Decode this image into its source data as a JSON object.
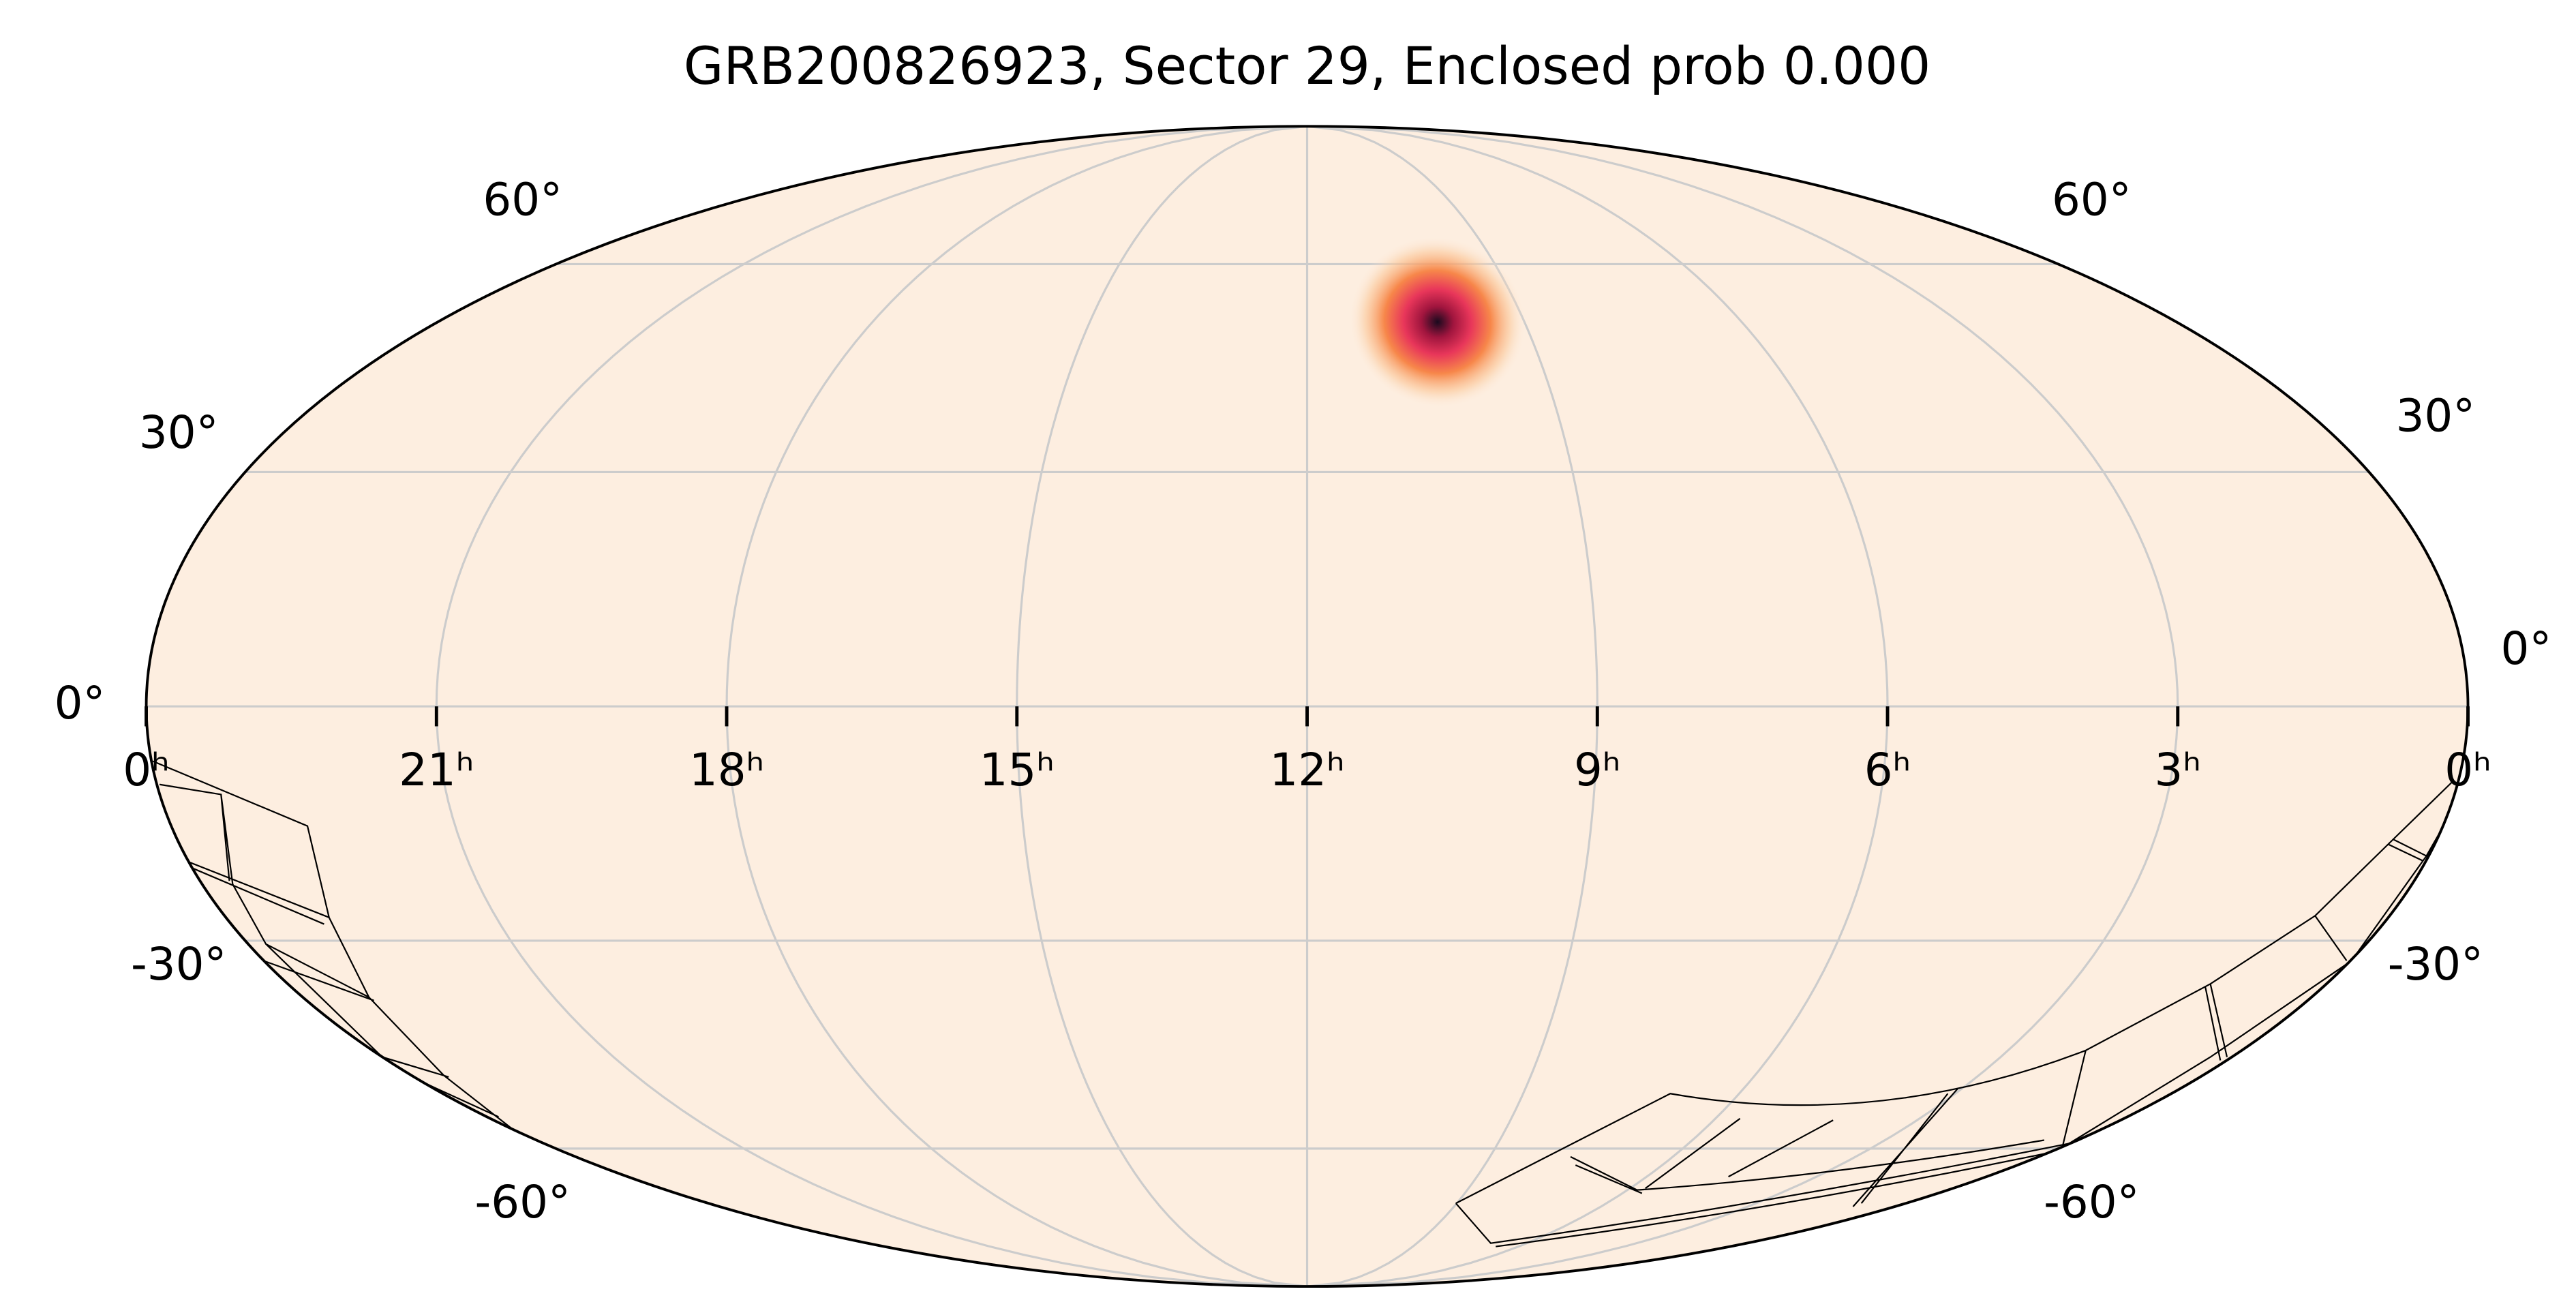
{
  "chart_data": {
    "type": "mollweide",
    "title": "GRB200826923, Sector 29, Enclosed prob 0.000",
    "xticks": [
      {
        "value": 24,
        "label": "0ʰ"
      },
      {
        "value": 21,
        "label": "21ʰ"
      },
      {
        "value": 18,
        "label": "18ʰ"
      },
      {
        "value": 15,
        "label": "15ʰ"
      },
      {
        "value": 12,
        "label": "12ʰ"
      },
      {
        "value": 9,
        "label": "9ʰ"
      },
      {
        "value": 6,
        "label": "6ʰ"
      },
      {
        "value": 3,
        "label": "3ʰ"
      },
      {
        "value": 0,
        "label": "0ʰ"
      }
    ],
    "yticks": [
      {
        "value": -60,
        "label": "-60°"
      },
      {
        "value": -30,
        "label": "-30°"
      },
      {
        "value": 0,
        "label": "0°"
      },
      {
        "value": 30,
        "label": "30°"
      },
      {
        "value": 60,
        "label": "60°"
      }
    ],
    "grid": true,
    "background_color": "#fdeee0",
    "source": {
      "ra": 10.2,
      "dec": 51,
      "sigma": 3
    }
  }
}
